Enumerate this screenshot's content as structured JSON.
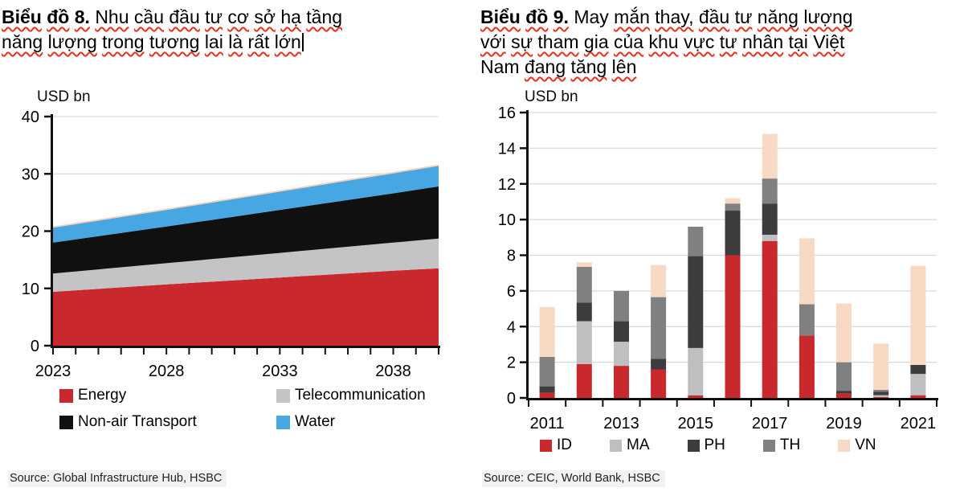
{
  "left_panel": {
    "title_lines": [
      [
        {
          "t": "Biểu",
          "b": true,
          "w": true
        },
        {
          "t": "đồ",
          "b": true,
          "w": true
        },
        {
          "t": "8.",
          "b": true,
          "w": true
        },
        {
          "t": "Nhu",
          "w": true
        },
        {
          "t": "cầu",
          "w": true
        },
        {
          "t": "đầu",
          "w": true
        },
        {
          "t": "tư",
          "w": true
        },
        {
          "t": "cơ",
          "w": true
        },
        {
          "t": "sở",
          "w": true
        },
        {
          "t": "hạ",
          "w": true
        },
        {
          "t": "tầng",
          "w": true
        }
      ],
      [
        {
          "t": "năng",
          "w": true
        },
        {
          "t": "lượng",
          "w": true
        },
        {
          "t": "trong",
          "w": true
        },
        {
          "t": "tương",
          "w": true
        },
        {
          "t": "lai",
          "w": true
        },
        {
          "t": "là",
          "w": true
        },
        {
          "t": "rất",
          "w": true
        },
        {
          "t": "lớn",
          "w": true,
          "c": true
        }
      ]
    ],
    "source": "Source: Global Infrastructure Hub, HSBC"
  },
  "right_panel": {
    "title_lines": [
      [
        {
          "t": "Biểu",
          "b": true,
          "w": true
        },
        {
          "t": "đồ",
          "b": true,
          "w": true
        },
        {
          "t": "9.",
          "b": true,
          "w": true
        },
        {
          "t": "May"
        },
        {
          "t": "mắn",
          "w": true
        },
        {
          "t": "thay,",
          "w": true
        },
        {
          "t": "đầu",
          "w": true
        },
        {
          "t": "tư",
          "w": true
        },
        {
          "t": "năng",
          "w": true
        },
        {
          "t": "lượng",
          "w": true
        }
      ],
      [
        {
          "t": "với",
          "w": true
        },
        {
          "t": "sự",
          "w": true
        },
        {
          "t": "tham",
          "w": true
        },
        {
          "t": "gia",
          "w": true
        },
        {
          "t": "của",
          "w": true
        },
        {
          "t": "khu",
          "w": true
        },
        {
          "t": "vực",
          "w": true
        },
        {
          "t": "tư",
          "w": true
        },
        {
          "t": "nhân",
          "w": true
        },
        {
          "t": "tại",
          "w": true
        },
        {
          "t": "Việt",
          "w": true
        }
      ],
      [
        {
          "t": "Nam"
        },
        {
          "t": "đang",
          "w": true
        },
        {
          "t": "tăng",
          "w": true
        },
        {
          "t": "lên",
          "w": true
        }
      ]
    ],
    "source": "Source: CEIC, World Bank, HSBC"
  },
  "colors": {
    "grid": "#D9D9D9",
    "axis": "#111111",
    "squiggle": "#e8301f",
    "source_bg": "#f2f2f2"
  },
  "chart_data": [
    {
      "type": "area",
      "stacked": true,
      "title": "Nhu cầu đầu tư cơ sở hạ tầng năng lượng trong tương lai là rất lớn",
      "ylabel": "USD bn",
      "x": [
        2023,
        2028,
        2033,
        2038,
        2040
      ],
      "x_range": [
        2023,
        2040
      ],
      "xticks_labeled": [
        2023,
        2028,
        2033,
        2038
      ],
      "ylim": [
        0,
        40
      ],
      "yticks": [
        0,
        10,
        20,
        30,
        40
      ],
      "grid": "horizontal",
      "legend_position": "bottom",
      "top_edge_stroke": "#F7D0B5",
      "series": [
        {
          "name": "Energy",
          "color": "#C9282C",
          "values": [
            9.4,
            10.7,
            11.9,
            13.1,
            13.5
          ]
        },
        {
          "name": "Telecommunication",
          "color": "#C4C4C6",
          "values": [
            3.2,
            3.7,
            4.3,
            4.9,
            5.2
          ]
        },
        {
          "name": "Non-air Transport",
          "color": "#101010",
          "values": [
            5.4,
            6.4,
            7.5,
            8.6,
            9.1
          ]
        },
        {
          "name": "Water",
          "color": "#46A7E3",
          "values": [
            2.7,
            3.0,
            3.3,
            3.6,
            3.7
          ]
        }
      ]
    },
    {
      "type": "bar",
      "stacked": true,
      "title": "May mắn thay, đầu tư năng lượng với sự tham gia của khu vực tư nhân tại Việt Nam đang tăng lên",
      "ylabel": "USD bn",
      "categories": [
        2011,
        2012,
        2013,
        2014,
        2015,
        2016,
        2017,
        2018,
        2019,
        2020,
        2021
      ],
      "xtick_labels": [
        "2011",
        "2013",
        "2015",
        "2017",
        "2019",
        "2021"
      ],
      "ylim": [
        0,
        16
      ],
      "yticks": [
        0,
        2,
        4,
        6,
        8,
        10,
        12,
        14,
        16
      ],
      "grid": "horizontal",
      "legend_position": "bottom",
      "series": [
        {
          "name": "ID",
          "color": "#C9282C",
          "values": [
            0.3,
            1.9,
            1.8,
            1.6,
            0.15,
            8.0,
            8.8,
            3.5,
            0.25,
            0.05,
            0.15
          ]
        },
        {
          "name": "MA",
          "color": "#BFBFC1",
          "values": [
            0,
            2.4,
            1.35,
            0,
            2.65,
            0,
            0.35,
            0,
            0,
            0.1,
            1.2
          ]
        },
        {
          "name": "PH",
          "color": "#3D3D3F",
          "values": [
            0.35,
            1.05,
            1.15,
            0.6,
            5.15,
            2.5,
            1.75,
            0,
            0.15,
            0.2,
            0.5
          ]
        },
        {
          "name": "TH",
          "color": "#7F8082",
          "values": [
            1.65,
            2.0,
            1.7,
            3.45,
            1.65,
            0.4,
            1.4,
            1.75,
            1.6,
            0.1,
            0
          ]
        },
        {
          "name": "VN",
          "color": "#F8D9C3",
          "values": [
            2.8,
            0.25,
            0,
            1.8,
            0,
            0.3,
            2.5,
            3.7,
            3.3,
            2.6,
            5.55
          ]
        }
      ]
    }
  ]
}
